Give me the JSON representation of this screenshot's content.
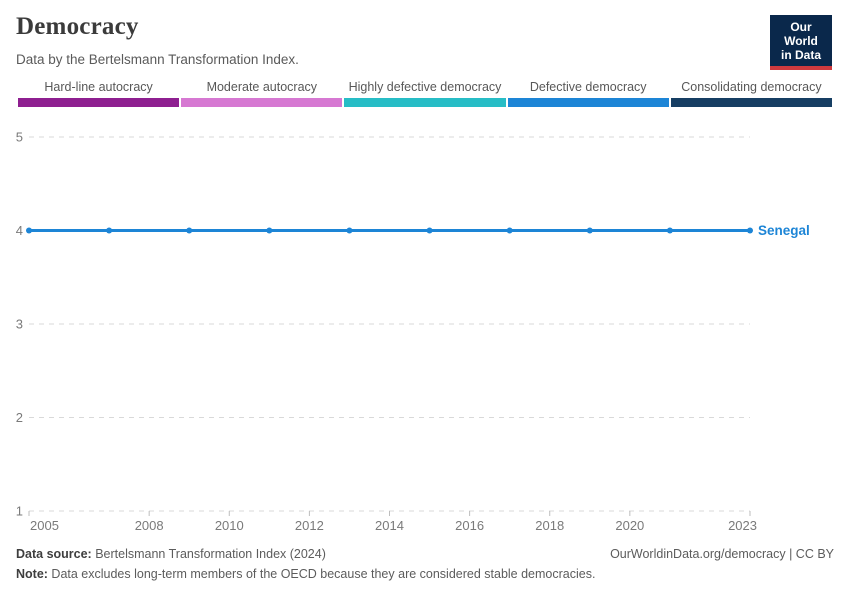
{
  "header": {
    "title": "Democracy",
    "subtitle": "Data by the Bertelsmann Transformation Index.",
    "logo": {
      "line1": "Our World",
      "line2": "in Data",
      "bg_color": "#0a284b",
      "accent_color": "#cf3a3e"
    }
  },
  "legend": {
    "categories": [
      {
        "label": "Hard-line autocracy",
        "color": "#8e1f90"
      },
      {
        "label": "Moderate autocracy",
        "color": "#d678d2"
      },
      {
        "label": "Highly defective democracy",
        "color": "#27bdc6"
      },
      {
        "label": "Defective democracy",
        "color": "#1d85d6"
      },
      {
        "label": "Consolidating democracy",
        "color": "#163e63"
      }
    ]
  },
  "chart_data": {
    "type": "line",
    "title": "Democracy",
    "xlabel": "",
    "ylabel": "",
    "xlim": [
      2005,
      2023
    ],
    "ylim": [
      1,
      5
    ],
    "x_ticks": [
      2005,
      2008,
      2010,
      2012,
      2014,
      2016,
      2018,
      2020,
      2023
    ],
    "y_ticks": [
      1,
      2,
      3,
      4,
      5
    ],
    "grid": "horizontal-dashed",
    "legend_position": "end-of-line-label",
    "series": [
      {
        "name": "Senegal",
        "color": "#1d85d6",
        "x": [
          2005,
          2007,
          2009,
          2011,
          2013,
          2015,
          2017,
          2019,
          2021,
          2023
        ],
        "values": [
          4,
          4,
          4,
          4,
          4,
          4,
          4,
          4,
          4,
          4
        ]
      }
    ]
  },
  "footer": {
    "source_label": "Data source:",
    "source_text": " Bertelsmann Transformation Index (2024)",
    "attribution": "OurWorldinData.org/democracy | CC BY",
    "note_label": "Note:",
    "note_text": " Data excludes long-term members of the OECD because they are considered stable democracies."
  }
}
